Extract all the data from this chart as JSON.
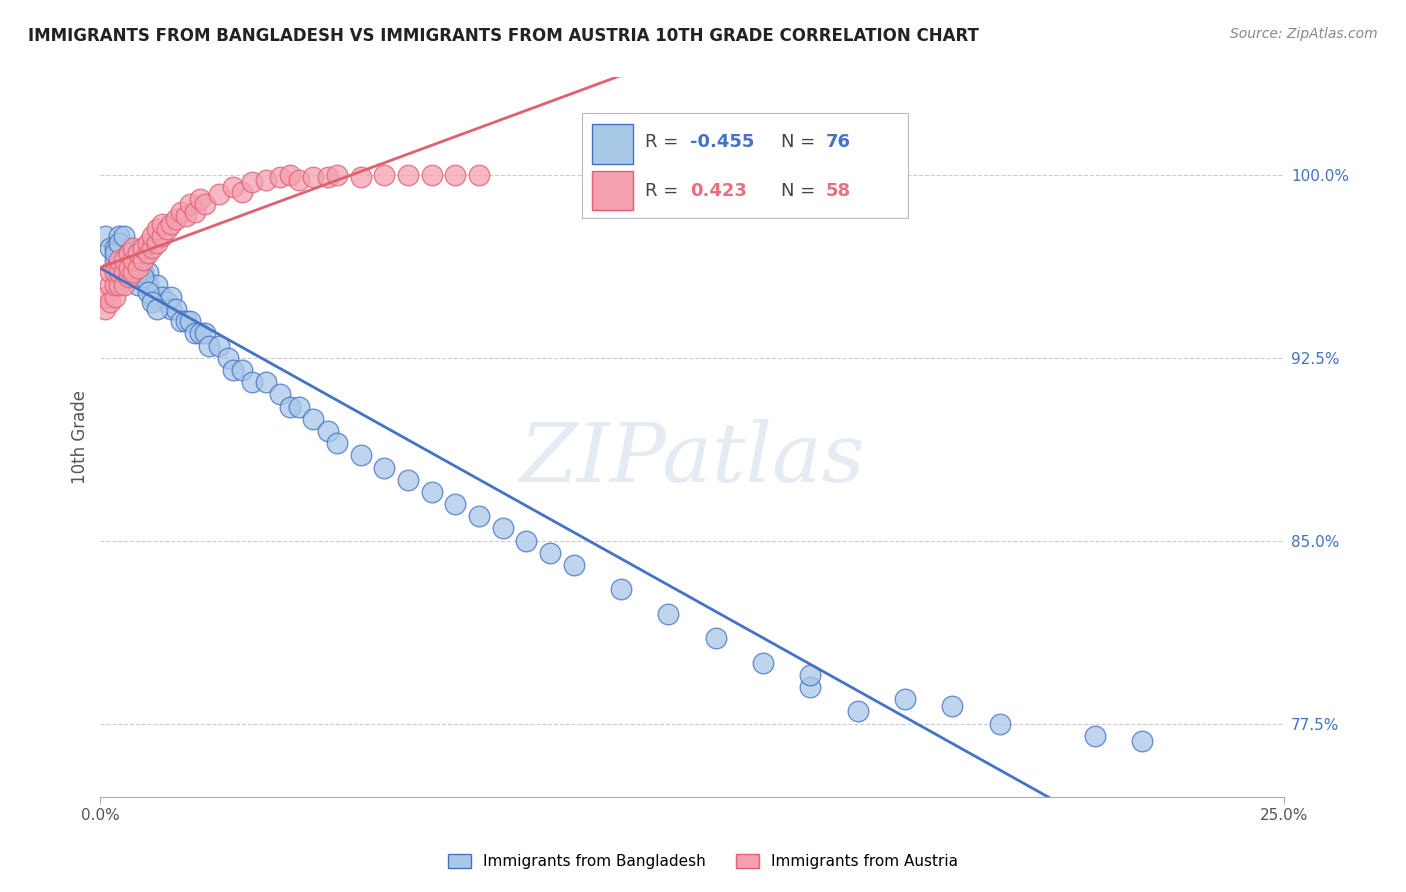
{
  "title": "IMMIGRANTS FROM BANGLADESH VS IMMIGRANTS FROM AUSTRIA 10TH GRADE CORRELATION CHART",
  "source": "Source: ZipAtlas.com",
  "ylabel": "10th Grade",
  "ylabel_ticks": [
    "77.5%",
    "85.0%",
    "92.5%",
    "100.0%"
  ],
  "ylabel_values": [
    0.775,
    0.85,
    0.925,
    1.0
  ],
  "xlim": [
    0.0,
    0.25
  ],
  "ylim": [
    0.745,
    1.04
  ],
  "legend_r_bangladesh": "-0.455",
  "legend_n_bangladesh": "76",
  "legend_r_austria": "0.423",
  "legend_n_austria": "58",
  "legend_label_bangladesh": "Immigrants from Bangladesh",
  "legend_label_austria": "Immigrants from Austria",
  "color_bangladesh": "#a8c8e8",
  "color_austria": "#f4a0b0",
  "color_bangladesh_line": "#4472c4",
  "color_austria_line": "#e06070",
  "color_r_bangladesh": "#4472c4",
  "color_r_austria": "#e87080",
  "bangladesh_x": [
    0.001,
    0.002,
    0.003,
    0.003,
    0.004,
    0.004,
    0.005,
    0.005,
    0.006,
    0.006,
    0.007,
    0.007,
    0.008,
    0.008,
    0.009,
    0.009,
    0.01,
    0.01,
    0.011,
    0.012,
    0.013,
    0.014,
    0.015,
    0.015,
    0.016,
    0.017,
    0.018,
    0.019,
    0.02,
    0.021,
    0.022,
    0.023,
    0.025,
    0.027,
    0.028,
    0.03,
    0.032,
    0.035,
    0.038,
    0.04,
    0.042,
    0.045,
    0.048,
    0.05,
    0.055,
    0.06,
    0.065,
    0.07,
    0.075,
    0.08,
    0.085,
    0.09,
    0.095,
    0.1,
    0.11,
    0.12,
    0.13,
    0.14,
    0.15,
    0.16,
    0.003,
    0.004,
    0.005,
    0.006,
    0.007,
    0.008,
    0.009,
    0.01,
    0.011,
    0.012,
    0.15,
    0.17,
    0.19,
    0.21,
    0.22,
    0.18
  ],
  "bangladesh_y": [
    0.975,
    0.97,
    0.965,
    0.97,
    0.975,
    0.97,
    0.965,
    0.96,
    0.965,
    0.97,
    0.96,
    0.965,
    0.955,
    0.96,
    0.96,
    0.965,
    0.96,
    0.955,
    0.95,
    0.955,
    0.95,
    0.948,
    0.945,
    0.95,
    0.945,
    0.94,
    0.94,
    0.94,
    0.935,
    0.935,
    0.935,
    0.93,
    0.93,
    0.925,
    0.92,
    0.92,
    0.915,
    0.915,
    0.91,
    0.905,
    0.905,
    0.9,
    0.895,
    0.89,
    0.885,
    0.88,
    0.875,
    0.87,
    0.865,
    0.86,
    0.855,
    0.85,
    0.845,
    0.84,
    0.83,
    0.82,
    0.81,
    0.8,
    0.79,
    0.78,
    0.968,
    0.972,
    0.975,
    0.968,
    0.965,
    0.96,
    0.958,
    0.952,
    0.948,
    0.945,
    0.795,
    0.785,
    0.775,
    0.77,
    0.768,
    0.782
  ],
  "austria_x": [
    0.001,
    0.001,
    0.002,
    0.002,
    0.002,
    0.003,
    0.003,
    0.003,
    0.004,
    0.004,
    0.004,
    0.005,
    0.005,
    0.005,
    0.006,
    0.006,
    0.006,
    0.007,
    0.007,
    0.007,
    0.008,
    0.008,
    0.009,
    0.009,
    0.01,
    0.01,
    0.011,
    0.011,
    0.012,
    0.012,
    0.013,
    0.013,
    0.014,
    0.015,
    0.016,
    0.017,
    0.018,
    0.019,
    0.02,
    0.021,
    0.022,
    0.025,
    0.028,
    0.03,
    0.032,
    0.035,
    0.038,
    0.04,
    0.042,
    0.045,
    0.048,
    0.05,
    0.055,
    0.06,
    0.065,
    0.07,
    0.075,
    0.08
  ],
  "austria_y": [
    0.945,
    0.95,
    0.948,
    0.955,
    0.96,
    0.95,
    0.955,
    0.96,
    0.955,
    0.96,
    0.965,
    0.955,
    0.96,
    0.965,
    0.958,
    0.962,
    0.968,
    0.96,
    0.965,
    0.97,
    0.962,
    0.968,
    0.965,
    0.97,
    0.968,
    0.972,
    0.97,
    0.975,
    0.972,
    0.978,
    0.975,
    0.98,
    0.978,
    0.98,
    0.982,
    0.985,
    0.983,
    0.988,
    0.985,
    0.99,
    0.988,
    0.992,
    0.995,
    0.993,
    0.997,
    0.998,
    0.999,
    1.0,
    0.998,
    0.999,
    0.999,
    1.0,
    0.999,
    1.0,
    1.0,
    1.0,
    1.0,
    1.0
  ]
}
